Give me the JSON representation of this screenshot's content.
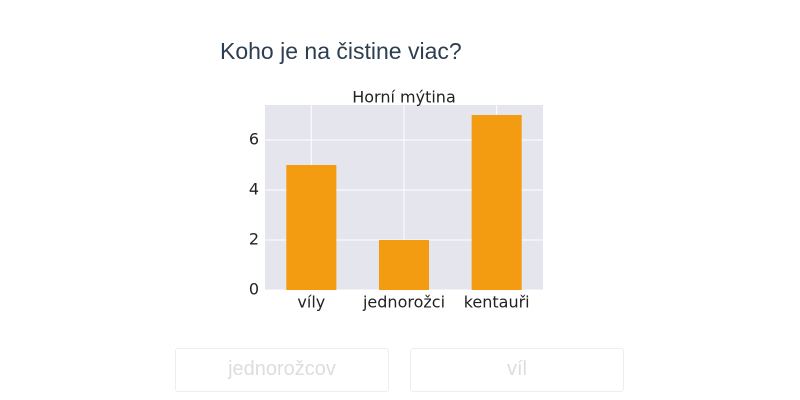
{
  "question": "Koho je na čistine viac?",
  "chart_data": {
    "type": "bar",
    "title": "Horní mýtina",
    "categories": [
      "víly",
      "jednorožci",
      "kentauři"
    ],
    "values": [
      5,
      2,
      7
    ],
    "color": "#f39c12",
    "ylim": [
      0,
      7.4
    ],
    "yticks": [
      0,
      2,
      4,
      6
    ],
    "grid": true
  },
  "answers": [
    "jednorožcov",
    "víl"
  ]
}
